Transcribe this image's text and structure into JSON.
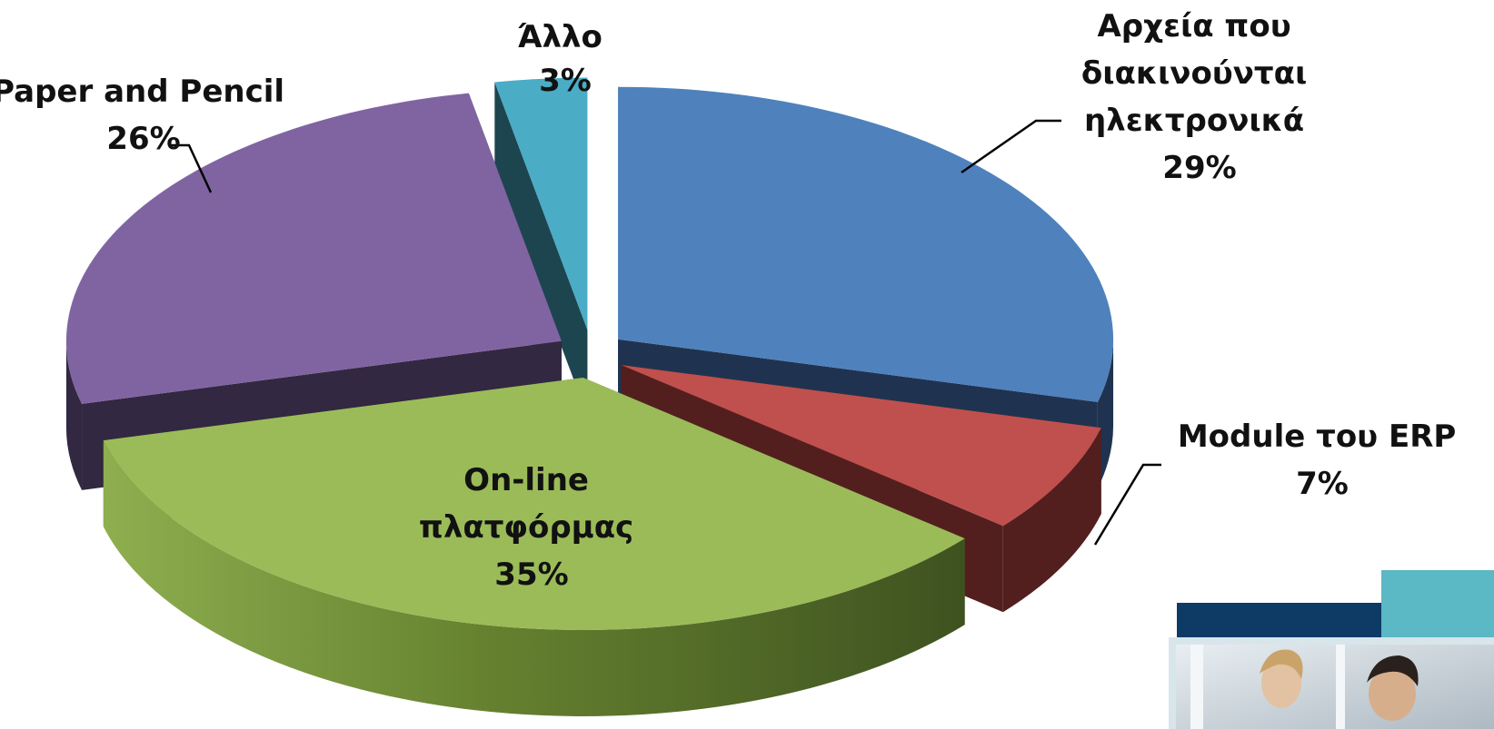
{
  "chart_data": {
    "type": "pie",
    "title": "",
    "slices": [
      {
        "label_lines": [
          "Αρχεία που",
          "διακινούνται",
          "ηλεκτρονικά"
        ],
        "value": 29,
        "value_label": "29%",
        "color": "#4F81BD",
        "side_color": "#1F3350"
      },
      {
        "label_lines": [
          "Module του ERP"
        ],
        "value": 7,
        "value_label": "7%",
        "color": "#C0504D",
        "side_color": "#521F1E"
      },
      {
        "label_lines": [
          "On-line",
          "πλατφόρμας"
        ],
        "value": 35,
        "value_label": "35%",
        "color": "#9BBB59",
        "side_color": "#4F6626"
      },
      {
        "label_lines": [
          "Paper and Pencil"
        ],
        "value": 26,
        "value_label": "26%",
        "color": "#8064A2",
        "side_color": "#322841"
      },
      {
        "label_lines": [
          "Άλλο"
        ],
        "value": 3,
        "value_label": "3%",
        "color": "#4BACC6",
        "side_color": "#1D4550"
      }
    ],
    "legend": "none",
    "style": "3d-exploded"
  },
  "decoration": {
    "photo_block_colors": [
      "#0E3A66",
      "#5BB8C5"
    ]
  }
}
